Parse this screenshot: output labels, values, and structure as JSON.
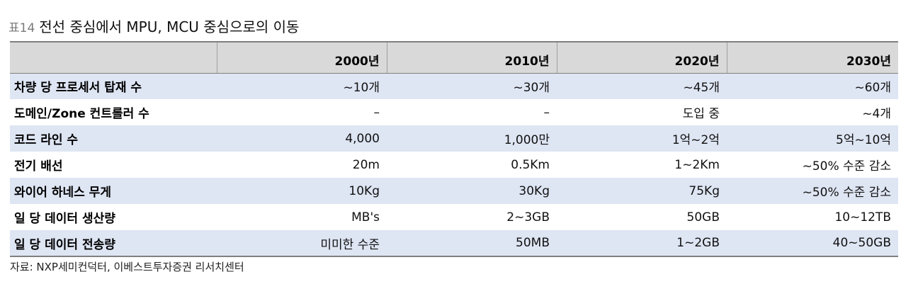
{
  "title": {
    "prefix": "표14",
    "text": "전선 중심에서 MPU, MCU 중심으로의 이동"
  },
  "table": {
    "headers": [
      "",
      "2000년",
      "2010년",
      "2020년",
      "2030년"
    ],
    "rows": [
      [
        "차량 당 프로세서 탑재 수",
        "~10개",
        "~30개",
        "~45개",
        "~60개"
      ],
      [
        "도메인/Zone 컨트롤러 수",
        "–",
        "–",
        "도입 중",
        "~4개"
      ],
      [
        "코드 라인 수",
        "4,000",
        "1,000만",
        "1억~2억",
        "5억~10억"
      ],
      [
        "전기 배선",
        "20m",
        "0.5Km",
        "1~2Km",
        "~50% 수준 감소"
      ],
      [
        "와이어 하네스 무게",
        "10Kg",
        "30Kg",
        "75Kg",
        "~50% 수준 감소"
      ],
      [
        "일 당 데이터 생산량",
        "MB's",
        "2~3GB",
        "50GB",
        "10~12TB"
      ],
      [
        "일 당 데이터 전송량",
        "미미한 수준",
        "50MB",
        "1~2GB",
        "40~50GB"
      ]
    ]
  },
  "source": "자료: NXP세미컨덕터, 이베스트투자증권 리서치센터",
  "colors": {
    "header_bg": "#d9d9d9",
    "shaded_row": "#dee5f3",
    "rule": "#7f7f7f"
  }
}
